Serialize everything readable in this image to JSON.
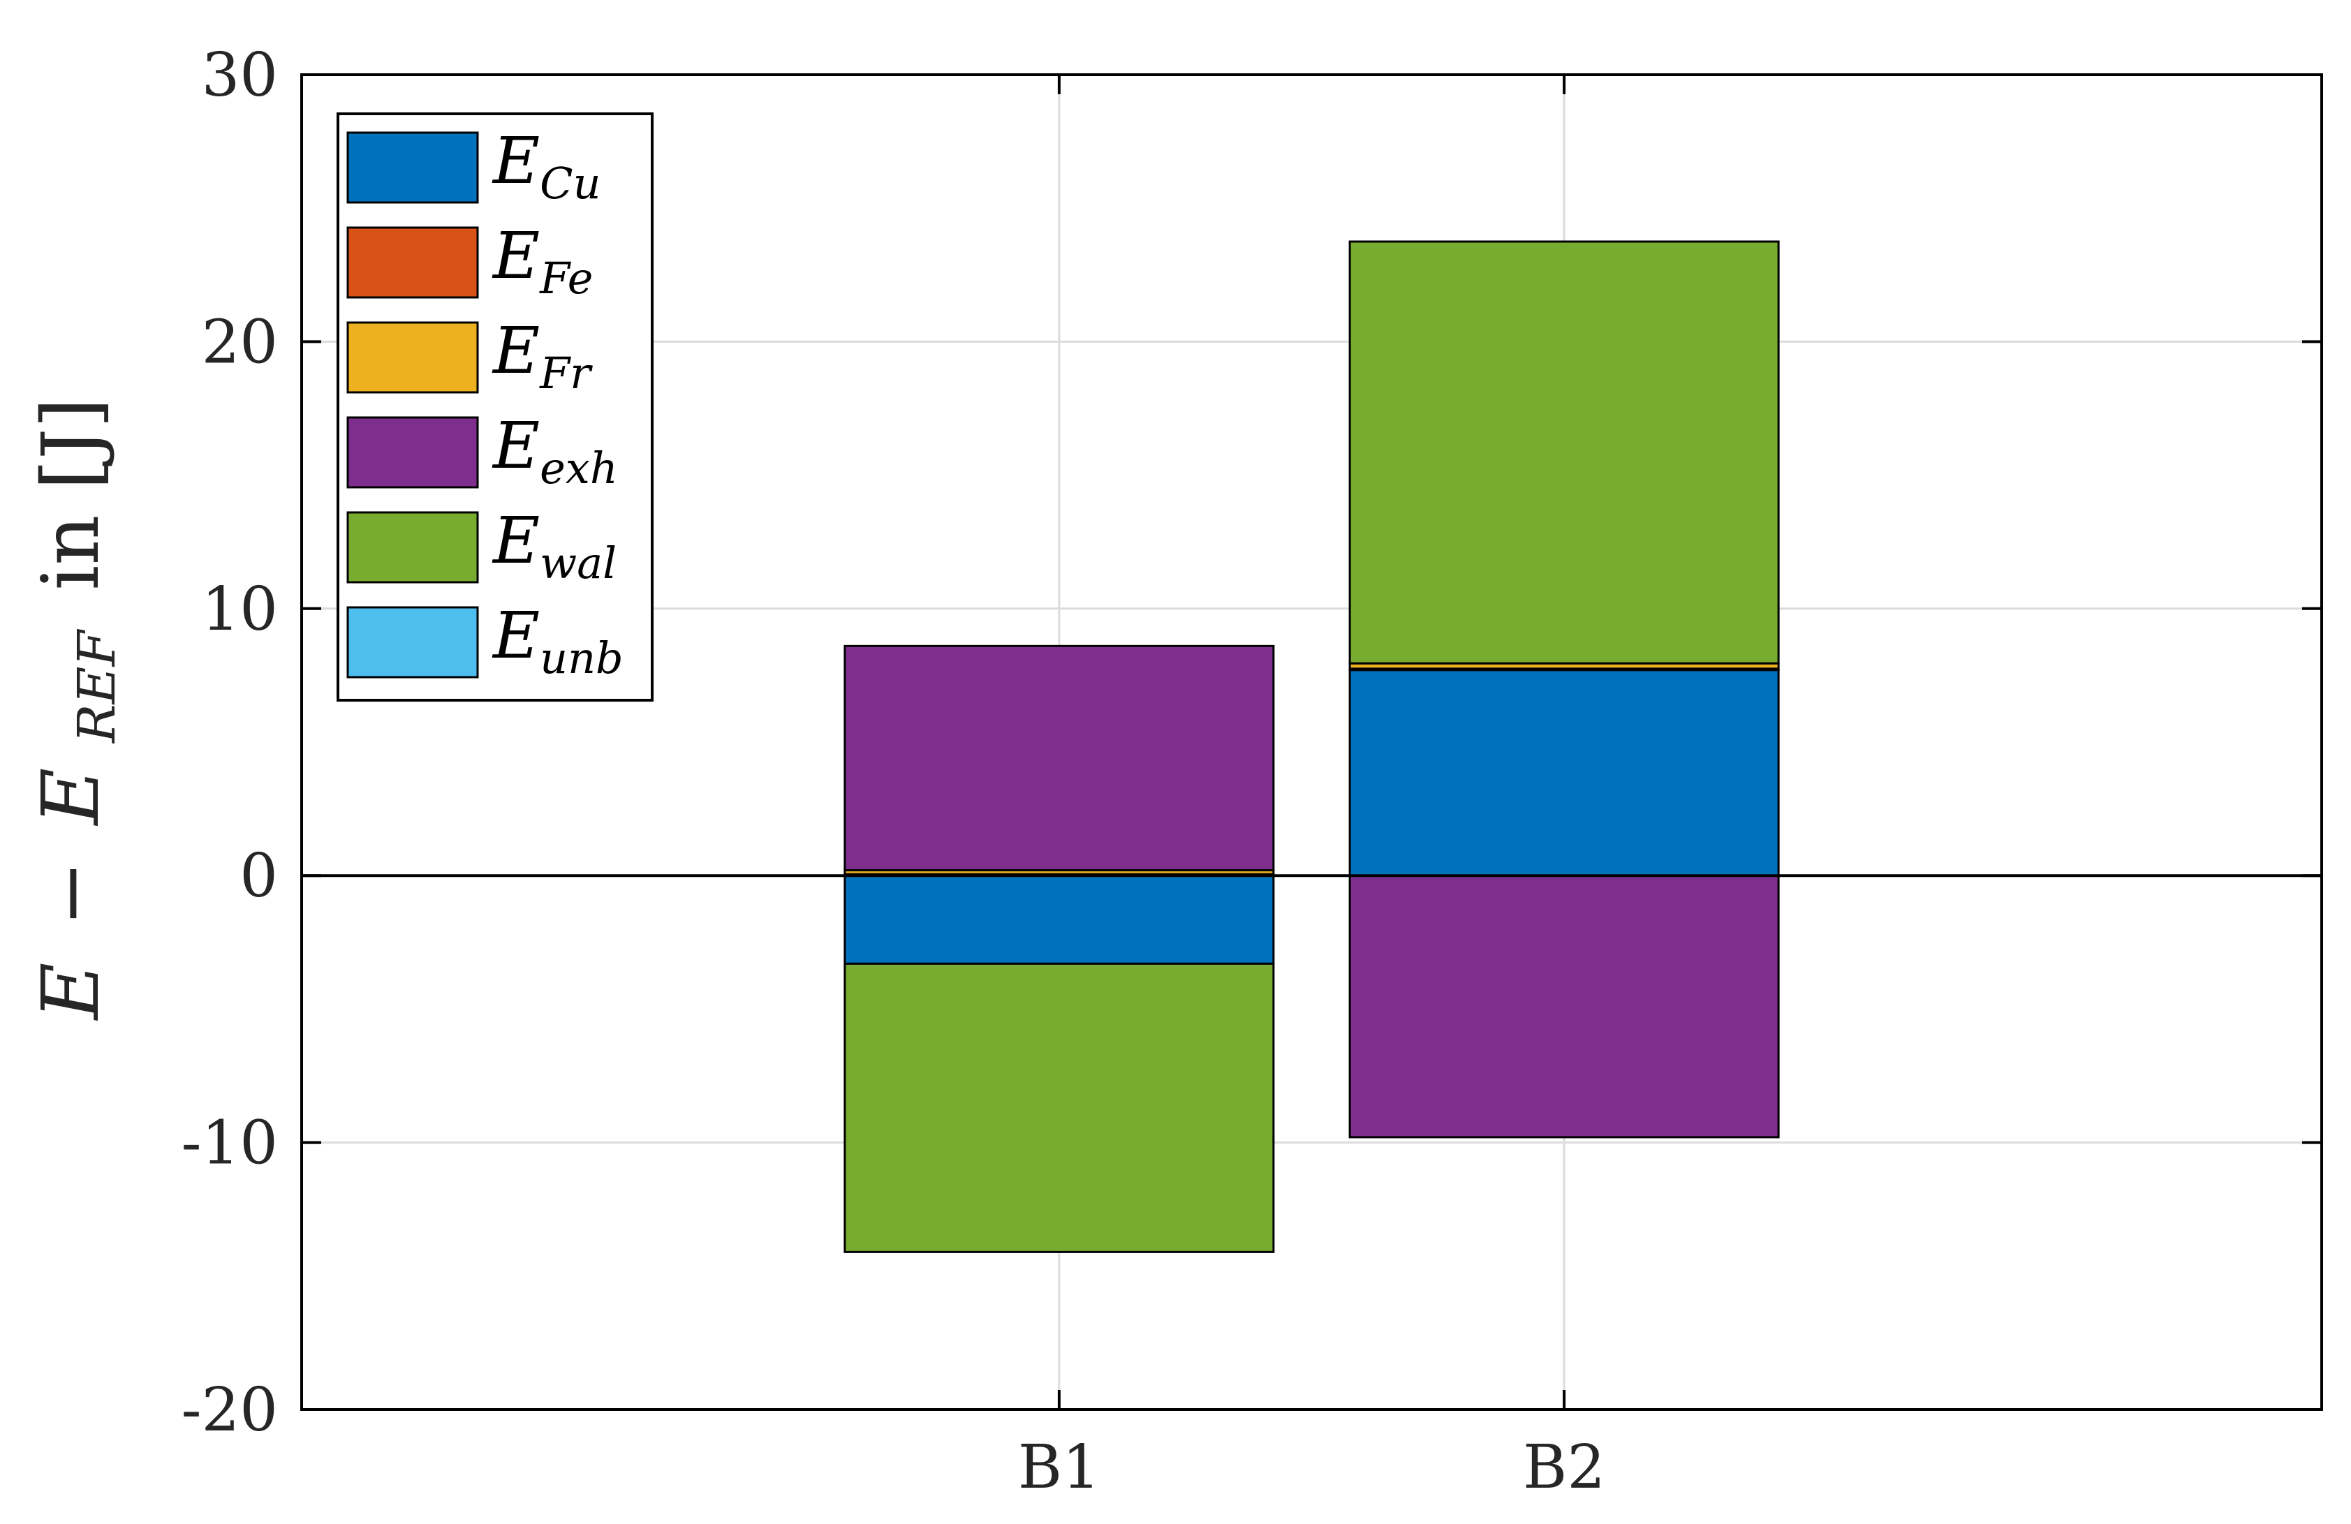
{
  "chart_data": {
    "type": "bar",
    "stacked": true,
    "categories": [
      "B1",
      "B2"
    ],
    "ylabel": {
      "prefix": "E",
      "minus": "−",
      "base": "E",
      "subscript": "REF",
      "suffix": "in [J]"
    },
    "ylim": [
      -20,
      30
    ],
    "yticks": [
      -20,
      -10,
      0,
      10,
      20,
      30
    ],
    "ytick_labels": [
      "-20",
      "-10",
      "0",
      "10",
      "20",
      "30"
    ],
    "grid": true,
    "legend_position": "top-left",
    "series": [
      {
        "name": "E",
        "subscript": "Cu",
        "color": "#0072BD",
        "values": [
          -3.3,
          7.7
        ]
      },
      {
        "name": "E",
        "subscript": "Fe",
        "color": "#D95319",
        "values": [
          0.05,
          0.05
        ]
      },
      {
        "name": "E",
        "subscript": "Fr",
        "color": "#EDB120",
        "values": [
          0.15,
          0.2
        ]
      },
      {
        "name": "E",
        "subscript": "exh",
        "color": "#7E2F8E",
        "values": [
          8.4,
          -9.8
        ]
      },
      {
        "name": "E",
        "subscript": "wal",
        "color": "#77AC30",
        "values": [
          -10.8,
          15.8
        ]
      },
      {
        "name": "E",
        "subscript": "unb",
        "color": "#4DBEEE",
        "values": [
          0,
          0
        ]
      }
    ]
  }
}
